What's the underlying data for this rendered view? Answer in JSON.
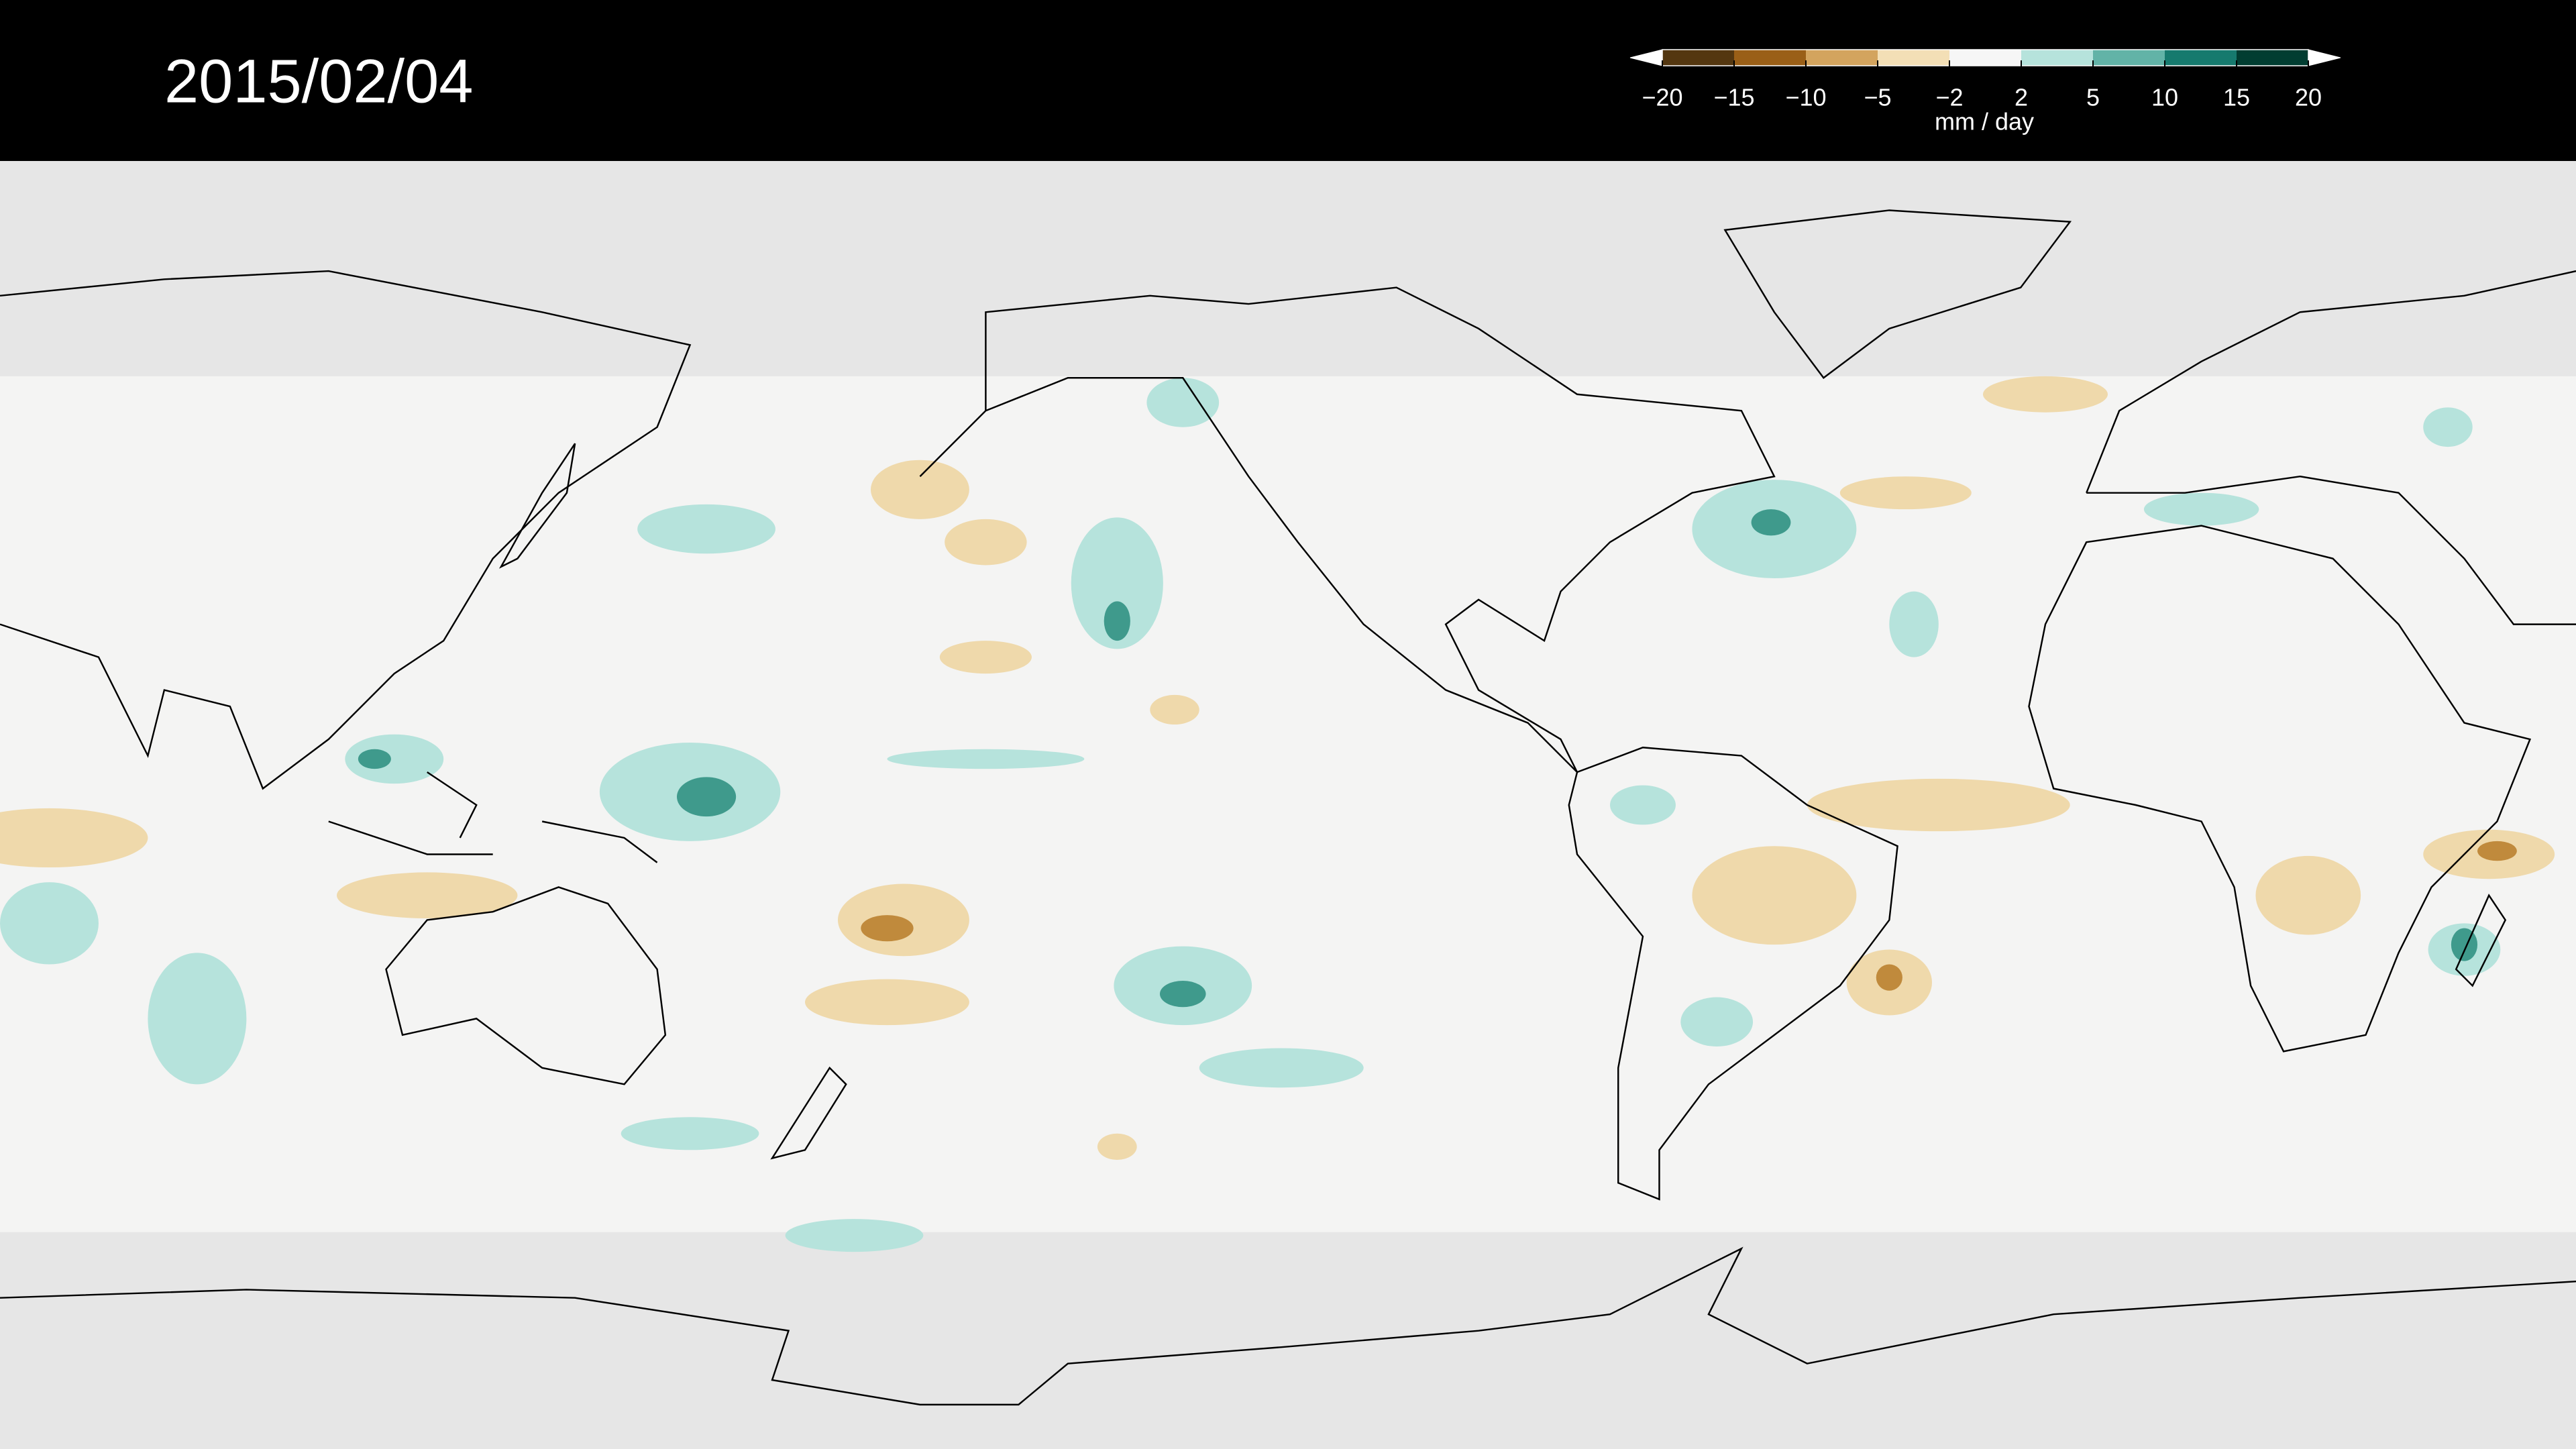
{
  "title": "2015/02/04",
  "colorbar": {
    "label": "mm / day",
    "ticks": [
      {
        "value": -20,
        "label": "−20"
      },
      {
        "value": -15,
        "label": "−15"
      },
      {
        "value": -10,
        "label": "−10"
      },
      {
        "value": -5,
        "label": "−5"
      },
      {
        "value": -2,
        "label": "−2"
      },
      2,
      5,
      10,
      15,
      20
    ],
    "colors": [
      "#543710",
      "#9a5f17",
      "#d3a45e",
      "#f3dfb6",
      "#f6f6f6",
      "#b6e3dc",
      "#62b3a7",
      "#167a6e",
      "#013d31"
    ],
    "extend_colors": [
      "#ffffff",
      "#ffffff"
    ]
  }
}
